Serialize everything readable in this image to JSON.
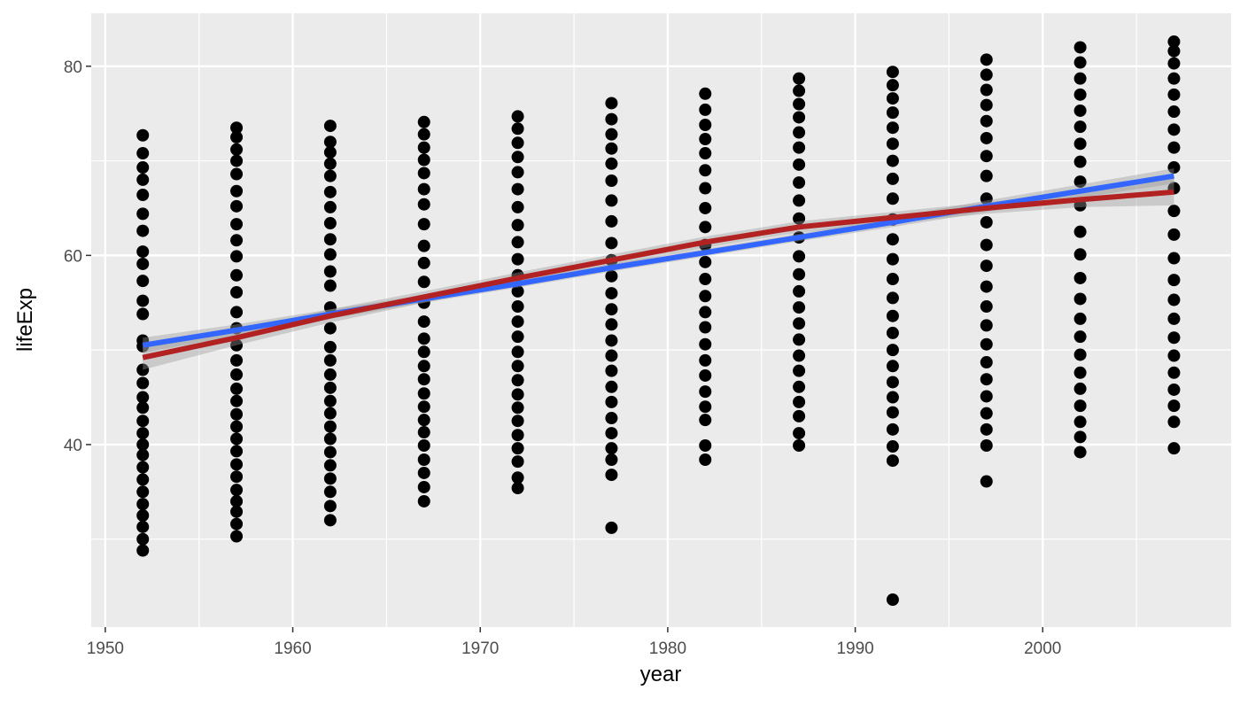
{
  "chart_data": {
    "type": "scatter",
    "x_label": "year",
    "y_label": "lifeExp",
    "xlim": [
      1949.25,
      2010.05
    ],
    "ylim": [
      20.7,
      85.6
    ],
    "xticks": [
      1950,
      1960,
      1970,
      1980,
      1990,
      2000
    ],
    "yticks": [
      40,
      60,
      80
    ],
    "x_minor_grid": [
      1955,
      1965,
      1975,
      1985,
      1995,
      2005
    ],
    "y_minor_grid": [
      30,
      50,
      70
    ],
    "grid": true,
    "point_color": "#000000",
    "groups": [
      {
        "x": 1952,
        "values": [
          28.8,
          30.0,
          31.3,
          32.5,
          33.7,
          35.0,
          36.3,
          37.6,
          38.9,
          40.0,
          41.2,
          42.5,
          43.9,
          45.0,
          46.5,
          47.9,
          50.4,
          51.0,
          53.8,
          55.2,
          57.3,
          59.1,
          60.4,
          62.6,
          64.4,
          66.4,
          68.0,
          69.3,
          70.8,
          72.7
        ]
      },
      {
        "x": 1957,
        "values": [
          30.3,
          31.6,
          32.9,
          34.0,
          35.2,
          36.6,
          37.9,
          39.3,
          40.6,
          41.9,
          43.2,
          44.6,
          45.9,
          47.4,
          48.9,
          50.5,
          52.3,
          54.0,
          56.1,
          57.9,
          59.9,
          61.6,
          63.3,
          65.2,
          66.8,
          68.6,
          70.0,
          71.2,
          72.5,
          73.5
        ]
      },
      {
        "x": 1962,
        "values": [
          32.0,
          33.5,
          35.0,
          36.4,
          37.8,
          39.2,
          40.6,
          41.9,
          43.3,
          44.6,
          46.0,
          47.4,
          48.9,
          50.3,
          52.3,
          54.5,
          56.8,
          58.3,
          60.1,
          61.7,
          63.4,
          65.1,
          66.7,
          68.4,
          69.7,
          70.9,
          72.0,
          73.7
        ]
      },
      {
        "x": 1967,
        "values": [
          34.0,
          35.5,
          37.0,
          38.4,
          39.9,
          41.3,
          42.6,
          44.0,
          45.4,
          46.9,
          48.3,
          49.8,
          51.2,
          53.0,
          55.0,
          57.2,
          59.2,
          61.0,
          63.3,
          65.4,
          67.0,
          68.7,
          70.1,
          71.4,
          72.8,
          74.1
        ]
      },
      {
        "x": 1972,
        "values": [
          35.4,
          36.5,
          38.2,
          39.6,
          41.0,
          42.5,
          43.9,
          45.3,
          46.8,
          48.3,
          49.8,
          51.4,
          53.0,
          54.6,
          56.2,
          57.9,
          59.6,
          61.4,
          63.2,
          65.1,
          67.0,
          68.8,
          70.4,
          71.9,
          73.4,
          74.7
        ]
      },
      {
        "x": 1977,
        "values": [
          31.2,
          36.8,
          38.4,
          39.6,
          41.2,
          42.8,
          44.5,
          46.1,
          47.8,
          49.4,
          51.0,
          52.7,
          54.3,
          56.0,
          57.8,
          59.5,
          61.3,
          63.6,
          65.8,
          67.9,
          69.7,
          71.3,
          72.8,
          74.4,
          76.1
        ]
      },
      {
        "x": 1982,
        "values": [
          38.4,
          39.9,
          42.6,
          44.0,
          45.6,
          47.3,
          48.9,
          50.6,
          52.4,
          54.0,
          55.7,
          57.5,
          59.3,
          61.1,
          63.0,
          65.0,
          67.1,
          69.0,
          70.8,
          72.3,
          73.8,
          75.4,
          77.1
        ]
      },
      {
        "x": 1987,
        "values": [
          39.9,
          41.2,
          43.0,
          44.5,
          46.1,
          47.8,
          49.4,
          51.1,
          52.8,
          54.5,
          56.2,
          58.0,
          59.9,
          61.9,
          63.9,
          65.8,
          67.7,
          69.6,
          71.4,
          73.0,
          74.6,
          76.0,
          77.4,
          78.7
        ]
      },
      {
        "x": 1992,
        "values": [
          23.6,
          38.3,
          39.8,
          41.6,
          43.4,
          45.0,
          46.6,
          48.3,
          50.0,
          51.8,
          53.6,
          55.5,
          57.5,
          59.6,
          61.7,
          63.8,
          66.0,
          68.1,
          70.0,
          71.8,
          73.5,
          75.1,
          76.6,
          78.0,
          79.4
        ]
      },
      {
        "x": 1997,
        "values": [
          36.1,
          39.9,
          41.6,
          43.3,
          45.1,
          46.9,
          48.7,
          50.6,
          52.6,
          54.6,
          56.7,
          58.9,
          61.1,
          63.5,
          66.0,
          68.4,
          70.5,
          72.4,
          74.2,
          75.9,
          77.5,
          79.1,
          80.7
        ]
      },
      {
        "x": 2002,
        "values": [
          39.2,
          40.8,
          42.4,
          44.1,
          45.9,
          47.6,
          49.5,
          51.4,
          53.3,
          55.4,
          57.6,
          60.1,
          62.5,
          65.3,
          67.8,
          69.9,
          71.8,
          73.6,
          75.3,
          77.0,
          78.7,
          80.4,
          82.0
        ]
      },
      {
        "x": 2007,
        "values": [
          39.6,
          42.4,
          44.1,
          45.8,
          47.6,
          49.4,
          51.3,
          53.3,
          55.3,
          57.4,
          59.7,
          62.2,
          64.7,
          67.1,
          69.3,
          71.4,
          73.3,
          75.2,
          77.0,
          78.7,
          80.3,
          81.6,
          82.6
        ]
      }
    ],
    "smooth_x": [
      1952,
      1957,
      1962,
      1967,
      1972,
      1977,
      1982,
      1987,
      1992,
      1997,
      2002,
      2007
    ],
    "smooths": [
      {
        "color": "#3366FF",
        "band_color": "#999999",
        "values": [
          50.5,
          52.1,
          53.8,
          55.4,
          57.0,
          58.7,
          60.3,
          61.9,
          63.5,
          65.2,
          66.8,
          68.4
        ],
        "lower": [
          49.7,
          51.5,
          53.3,
          55.0,
          56.6,
          58.3,
          59.9,
          61.5,
          63.0,
          64.6,
          66.1,
          67.6
        ],
        "upper": [
          51.3,
          52.7,
          54.3,
          55.8,
          57.4,
          59.1,
          60.7,
          62.3,
          64.0,
          65.8,
          67.5,
          69.2
        ]
      },
      {
        "color": "#B22222",
        "band_color": "#999999",
        "values": [
          49.2,
          51.3,
          53.6,
          55.6,
          57.6,
          59.5,
          61.4,
          63.0,
          64.0,
          65.0,
          65.9,
          66.7
        ],
        "lower": [
          47.9,
          50.5,
          52.9,
          55.0,
          57.0,
          58.9,
          60.8,
          62.4,
          63.4,
          64.4,
          65.1,
          65.3
        ],
        "upper": [
          50.5,
          52.1,
          54.3,
          56.2,
          58.2,
          60.1,
          62.0,
          63.6,
          64.6,
          65.6,
          66.7,
          68.1
        ]
      }
    ]
  }
}
